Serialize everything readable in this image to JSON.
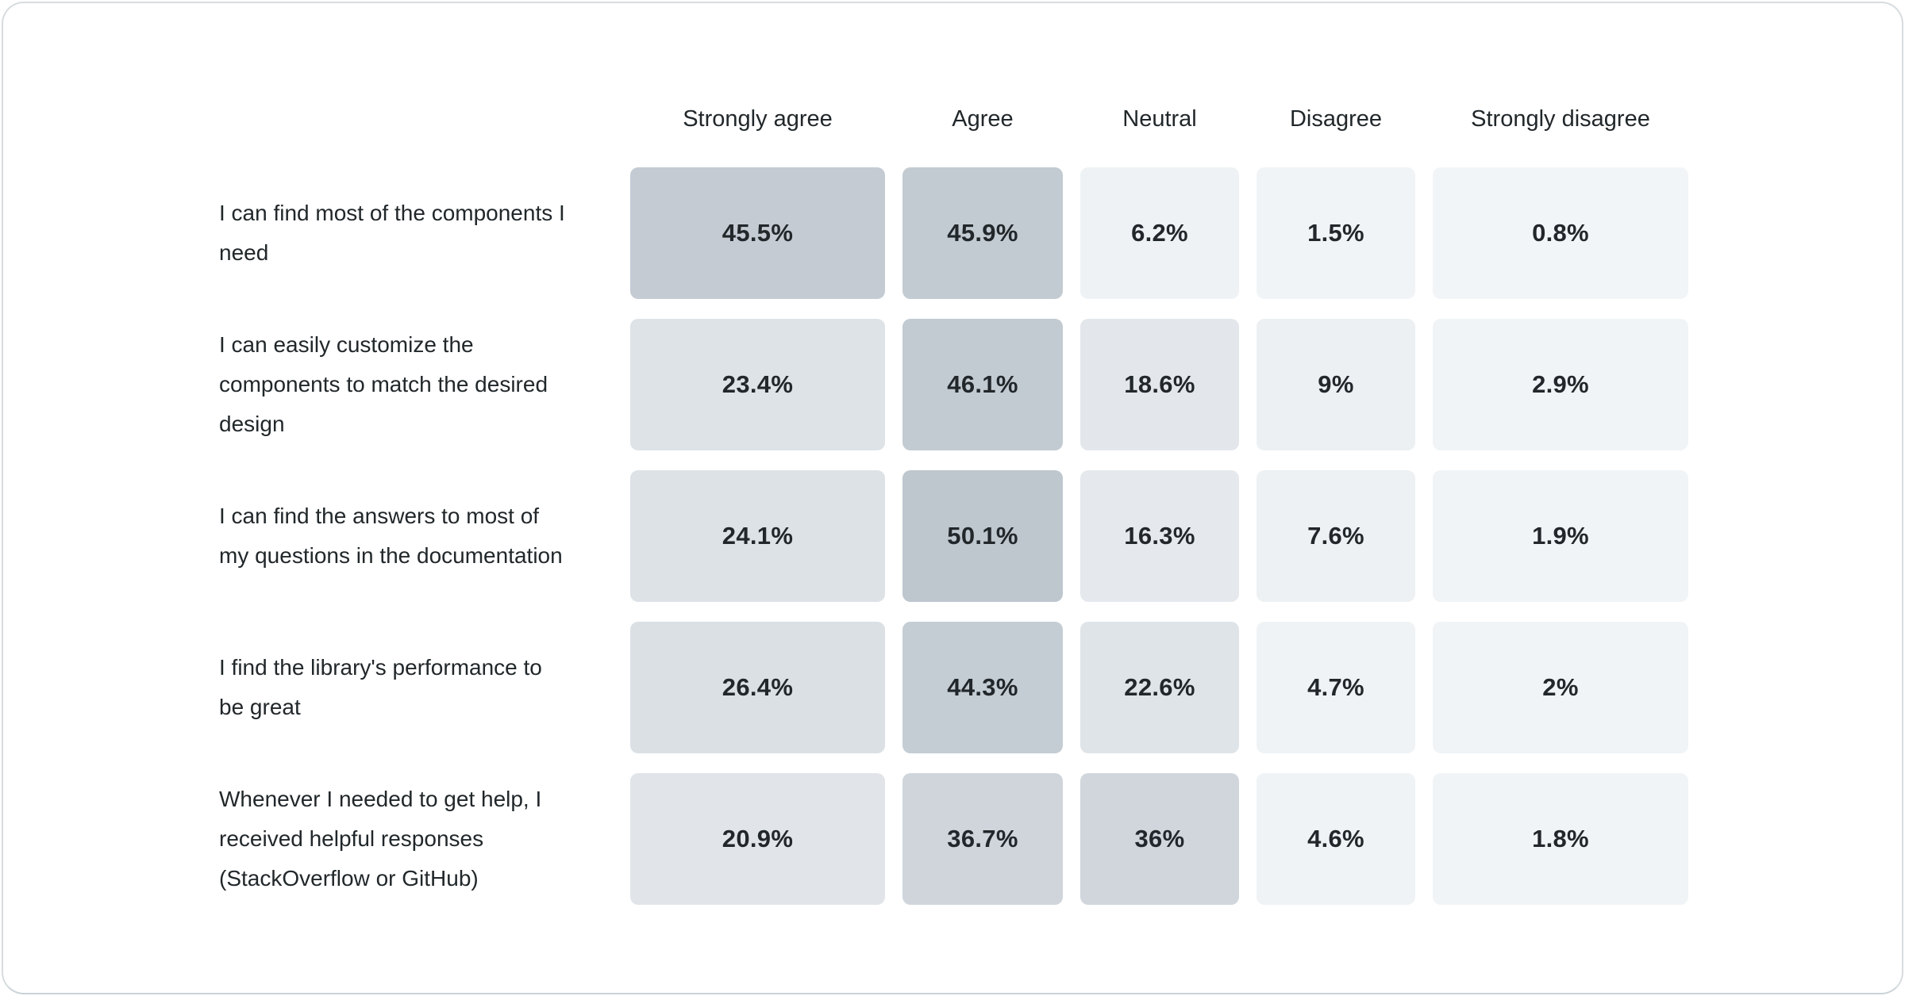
{
  "colors": {
    "text": "#21272a",
    "card_bg": "#ffffff",
    "card_border": "#d7dcdf",
    "heat_low": "#f2f5f7",
    "heat_high": "#bec6ce"
  },
  "chart_data": {
    "type": "heatmap",
    "title": "",
    "columns": [
      "Strongly agree",
      "Agree",
      "Neutral",
      "Disagree",
      "Strongly disagree"
    ],
    "rows": [
      {
        "label": "I can find most of the components I need",
        "values": [
          45.5,
          45.9,
          6.2,
          1.5,
          0.8
        ],
        "display": [
          "45.5%",
          "45.9%",
          "6.2%",
          "1.5%",
          "0.8%"
        ]
      },
      {
        "label": "I can easily customize the components to match the desired design",
        "values": [
          23.4,
          46.1,
          18.6,
          9,
          2.9
        ],
        "display": [
          "23.4%",
          "46.1%",
          "18.6%",
          "9%",
          "2.9%"
        ]
      },
      {
        "label": "I can find the answers to most of my questions in the documentation",
        "values": [
          24.1,
          50.1,
          16.3,
          7.6,
          1.9
        ],
        "display": [
          "24.1%",
          "50.1%",
          "16.3%",
          "7.6%",
          "1.9%"
        ]
      },
      {
        "label": "I find the library's performance to be great",
        "values": [
          26.4,
          44.3,
          22.6,
          4.7,
          2
        ],
        "display": [
          "26.4%",
          "44.3%",
          "22.6%",
          "4.7%",
          "2%"
        ]
      },
      {
        "label": "Whenever I needed to get help, I received helpful responses (StackOverflow or GitHub)",
        "values": [
          20.9,
          36.7,
          36,
          4.6,
          1.8
        ],
        "display": [
          "20.9%",
          "36.7%",
          "36%",
          "4.6%",
          "1.8%"
        ]
      }
    ],
    "value_range": [
      0,
      50.1
    ],
    "grid": "off",
    "legend_position": "none"
  }
}
